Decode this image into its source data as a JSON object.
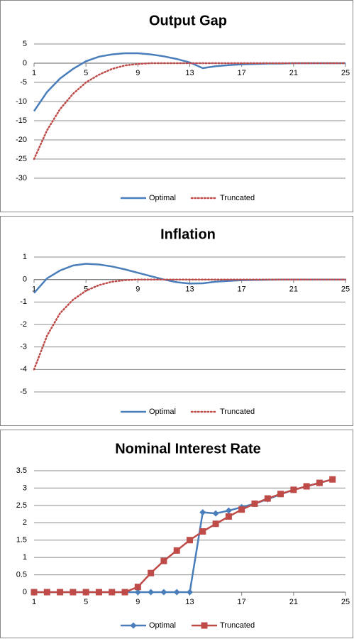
{
  "chart_data": [
    {
      "type": "line",
      "title": "Output Gap",
      "x": [
        1,
        2,
        3,
        4,
        5,
        6,
        7,
        8,
        9,
        10,
        11,
        12,
        13,
        14,
        15,
        16,
        17,
        18,
        19,
        20,
        21,
        22,
        23,
        24,
        25
      ],
      "xlim": [
        1,
        25
      ],
      "xticks": [
        1,
        5,
        9,
        13,
        17,
        21,
        25
      ],
      "ylim": [
        -30,
        5
      ],
      "yticks": [
        5,
        0,
        -5,
        -10,
        -15,
        -20,
        -25,
        -30
      ],
      "grid": true,
      "legend": "bottom",
      "series": [
        {
          "name": "Optimal",
          "color": "#4a7ebb",
          "style": "solid",
          "values": [
            -12.5,
            -7.5,
            -4,
            -1.5,
            0.5,
            1.7,
            2.3,
            2.6,
            2.6,
            2.3,
            1.8,
            1.1,
            0.2,
            -1.3,
            -0.8,
            -0.5,
            -0.3,
            -0.2,
            -0.1,
            -0.1,
            0,
            0,
            0,
            0,
            0
          ]
        },
        {
          "name": "Truncated",
          "color": "#be4b48",
          "style": "dotted",
          "values": [
            -25,
            -17.5,
            -12,
            -8,
            -5,
            -3,
            -1.5,
            -0.6,
            -0.2,
            0,
            0,
            0,
            0,
            0,
            0,
            0,
            0,
            0,
            0,
            0,
            0,
            0,
            0,
            0,
            0
          ]
        }
      ]
    },
    {
      "type": "line",
      "title": "Inflation",
      "x": [
        1,
        2,
        3,
        4,
        5,
        6,
        7,
        8,
        9,
        10,
        11,
        12,
        13,
        14,
        15,
        16,
        17,
        18,
        19,
        20,
        21,
        22,
        23,
        24,
        25
      ],
      "xlim": [
        1,
        25
      ],
      "xticks": [
        1,
        5,
        9,
        13,
        17,
        21,
        25
      ],
      "ylim": [
        -5,
        1
      ],
      "yticks": [
        1,
        0,
        -1,
        -2,
        -3,
        -4,
        -5
      ],
      "grid": true,
      "legend": "bottom",
      "series": [
        {
          "name": "Optimal",
          "color": "#4a7ebb",
          "style": "solid",
          "values": [
            -0.6,
            0.05,
            0.4,
            0.62,
            0.7,
            0.67,
            0.58,
            0.45,
            0.3,
            0.15,
            0,
            -0.12,
            -0.18,
            -0.17,
            -0.1,
            -0.06,
            -0.03,
            -0.02,
            -0.01,
            0,
            0,
            0,
            0,
            0,
            0
          ]
        },
        {
          "name": "Truncated",
          "color": "#be4b48",
          "style": "dotted",
          "values": [
            -4,
            -2.5,
            -1.5,
            -0.9,
            -0.5,
            -0.25,
            -0.1,
            -0.03,
            0,
            0,
            0,
            0,
            0,
            0,
            0,
            0,
            0,
            0,
            0,
            0,
            0,
            0,
            0,
            0,
            0
          ]
        }
      ]
    },
    {
      "type": "line",
      "title": "Nominal Interest Rate",
      "x": [
        1,
        2,
        3,
        4,
        5,
        6,
        7,
        8,
        9,
        10,
        11,
        12,
        13,
        14,
        15,
        16,
        17,
        18,
        19,
        20,
        21,
        22,
        23,
        24
      ],
      "xlim": [
        1,
        25
      ],
      "xticks": [
        1,
        5,
        9,
        13,
        17,
        21,
        25
      ],
      "ylim": [
        0,
        3.5
      ],
      "yticks": [
        0,
        0.5,
        1,
        1.5,
        2,
        2.5,
        3,
        3.5
      ],
      "grid": true,
      "legend": "bottom",
      "series": [
        {
          "name": "Optimal",
          "color": "#4a7ebb",
          "style": "solid",
          "marker": "diamond",
          "values": [
            0,
            0,
            0,
            0,
            0,
            0,
            0,
            0,
            0,
            0,
            0,
            0,
            0,
            2.3,
            2.27,
            2.35,
            2.45,
            2.55,
            2.68,
            2.82,
            2.95,
            3.05,
            3.15,
            3.25
          ]
        },
        {
          "name": "Truncated",
          "color": "#be4b48",
          "style": "solid",
          "marker": "square",
          "values": [
            0,
            0,
            0,
            0,
            0,
            0,
            0,
            0,
            0.15,
            0.55,
            0.9,
            1.2,
            1.5,
            1.75,
            1.97,
            2.18,
            2.38,
            2.55,
            2.7,
            2.83,
            2.95,
            3.05,
            3.15,
            3.25
          ]
        }
      ]
    }
  ]
}
